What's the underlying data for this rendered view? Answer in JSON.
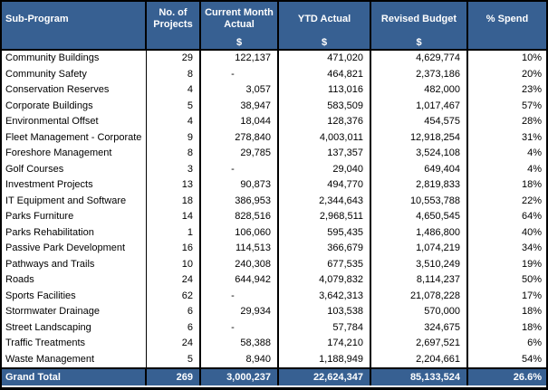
{
  "colors": {
    "header_bg": "#376092",
    "header_text": "#ffffff",
    "border": "#000000",
    "row_bg": "#ffffff",
    "row_text": "#000000"
  },
  "columns": [
    {
      "id": "name",
      "label": "Sub-Program",
      "dollar": ""
    },
    {
      "id": "projects",
      "label": "No. of Projects",
      "dollar": ""
    },
    {
      "id": "current_month",
      "label": "Current Month Actual",
      "dollar": "$"
    },
    {
      "id": "ytd",
      "label": "YTD Actual",
      "dollar": "$"
    },
    {
      "id": "revised",
      "label": "Revised Budget",
      "dollar": "$"
    },
    {
      "id": "pct",
      "label": "% Spend",
      "dollar": ""
    }
  ],
  "rows": [
    {
      "name": "Community Buildings",
      "projects": "29",
      "current_month": "122,137",
      "ytd": "471,020",
      "revised": "4,629,774",
      "pct": "10%"
    },
    {
      "name": "Community Safety",
      "projects": "8",
      "current_month": "-",
      "ytd": "464,821",
      "revised": "2,373,186",
      "pct": "20%"
    },
    {
      "name": "Conservation Reserves",
      "projects": "4",
      "current_month": "3,057",
      "ytd": "113,016",
      "revised": "482,000",
      "pct": "23%"
    },
    {
      "name": "Corporate Buildings",
      "projects": "5",
      "current_month": "38,947",
      "ytd": "583,509",
      "revised": "1,017,467",
      "pct": "57%"
    },
    {
      "name": "Environmental Offset",
      "projects": "4",
      "current_month": "18,044",
      "ytd": "128,376",
      "revised": "454,575",
      "pct": "28%"
    },
    {
      "name": "Fleet Management - Corporate",
      "projects": "9",
      "current_month": "278,840",
      "ytd": "4,003,011",
      "revised": "12,918,254",
      "pct": "31%"
    },
    {
      "name": "Foreshore Management",
      "projects": "8",
      "current_month": "29,785",
      "ytd": "137,357",
      "revised": "3,524,108",
      "pct": "4%"
    },
    {
      "name": "Golf Courses",
      "projects": "3",
      "current_month": "-",
      "ytd": "29,040",
      "revised": "649,404",
      "pct": "4%"
    },
    {
      "name": "Investment Projects",
      "projects": "13",
      "current_month": "90,873",
      "ytd": "494,770",
      "revised": "2,819,833",
      "pct": "18%"
    },
    {
      "name": "IT Equipment and Software",
      "projects": "18",
      "current_month": "386,953",
      "ytd": "2,344,643",
      "revised": "10,553,788",
      "pct": "22%"
    },
    {
      "name": "Parks Furniture",
      "projects": "14",
      "current_month": "828,516",
      "ytd": "2,968,511",
      "revised": "4,650,545",
      "pct": "64%"
    },
    {
      "name": "Parks Rehabilitation",
      "projects": "1",
      "current_month": "106,060",
      "ytd": "595,435",
      "revised": "1,486,800",
      "pct": "40%"
    },
    {
      "name": "Passive Park Development",
      "projects": "16",
      "current_month": "114,513",
      "ytd": "366,679",
      "revised": "1,074,219",
      "pct": "34%"
    },
    {
      "name": "Pathways and Trails",
      "projects": "10",
      "current_month": "240,308",
      "ytd": "677,535",
      "revised": "3,510,249",
      "pct": "19%"
    },
    {
      "name": "Roads",
      "projects": "24",
      "current_month": "644,942",
      "ytd": "4,079,832",
      "revised": "8,114,237",
      "pct": "50%"
    },
    {
      "name": "Sports Facilities",
      "projects": "62",
      "current_month": "-",
      "ytd": "3,642,313",
      "revised": "21,078,228",
      "pct": "17%"
    },
    {
      "name": "Stormwater Drainage",
      "projects": "6",
      "current_month": "29,934",
      "ytd": "103,538",
      "revised": "570,000",
      "pct": "18%"
    },
    {
      "name": "Street Landscaping",
      "projects": "6",
      "current_month": "-",
      "ytd": "57,784",
      "revised": "324,675",
      "pct": "18%"
    },
    {
      "name": "Traffic Treatments",
      "projects": "24",
      "current_month": "58,388",
      "ytd": "174,210",
      "revised": "2,697,521",
      "pct": "6%"
    },
    {
      "name": "Waste Management",
      "projects": "5",
      "current_month": "8,940",
      "ytd": "1,188,949",
      "revised": "2,204,661",
      "pct": "54%"
    }
  ],
  "grand_total": {
    "name": "Grand Total",
    "projects": "269",
    "current_month": "3,000,237",
    "ytd": "22,624,347",
    "revised": "85,133,524",
    "pct": "26.6%"
  }
}
